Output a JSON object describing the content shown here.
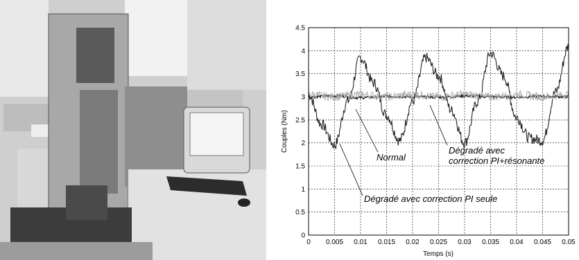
{
  "photo": {
    "subject": "lab-test-bench-photo"
  },
  "chart_data": {
    "type": "line",
    "title": "",
    "xlabel": "Temps (s)",
    "ylabel": "Couples (Nm)",
    "xlim": [
      0,
      0.05
    ],
    "ylim": [
      0,
      4.5
    ],
    "x_ticks": [
      0,
      0.005,
      0.01,
      0.015,
      0.02,
      0.025,
      0.03,
      0.035,
      0.04,
      0.045,
      0.05
    ],
    "x_tick_labels": [
      "0",
      "0.005",
      "0.01",
      "0.015",
      "0.02",
      "0.025",
      "0.03",
      "0.035",
      "0.04",
      "0.045",
      "0.05"
    ],
    "y_ticks": [
      0,
      0.5,
      1,
      1.5,
      2,
      2.5,
      3,
      3.5,
      4,
      4.5
    ],
    "y_tick_labels": [
      "0",
      "0.5",
      "1",
      "1.5",
      "2",
      "2.5",
      "3",
      "3.5",
      "4",
      "4.5"
    ],
    "grid": true,
    "series": [
      {
        "color": "#222222",
        "x": [
          0,
          0.0025,
          0.005,
          0.0075,
          0.01,
          0.0125,
          0.015,
          0.0175,
          0.02,
          0.0225,
          0.025,
          0.0275,
          0.03,
          0.0325,
          0.035,
          0.0375,
          0.04,
          0.0425,
          0.045,
          0.0475,
          0.05
        ],
        "values": [
          3.05,
          2.4,
          1.95,
          2.9,
          3.85,
          3.3,
          2.6,
          2.05,
          2.9,
          3.85,
          3.45,
          2.7,
          2.0,
          2.9,
          3.95,
          3.45,
          2.55,
          2.1,
          2.05,
          3.1,
          4.1
        ]
      },
      {
        "color": "#111111",
        "x": [
          0,
          0.005,
          0.01,
          0.015,
          0.02,
          0.025,
          0.03,
          0.035,
          0.04,
          0.045,
          0.05
        ],
        "values": [
          3.0,
          3.02,
          2.98,
          3.01,
          3.0,
          2.99,
          3.02,
          3.0,
          2.99,
          3.01,
          3.0
        ]
      },
      {
        "color": "#aaaaaa",
        "x": [
          0,
          0.005,
          0.01,
          0.015,
          0.02,
          0.025,
          0.03,
          0.035,
          0.04,
          0.045,
          0.05
        ],
        "values": [
          3.05,
          3.0,
          3.05,
          3.0,
          3.05,
          3.0,
          3.05,
          3.0,
          3.05,
          3.0,
          3.05
        ]
      }
    ],
    "annotations": [
      {
        "text": "Normal",
        "at": [
          0.0095,
          2.95
        ]
      },
      {
        "text": "Dégradé avec\ncorrection PI+résonante",
        "at": [
          0.023,
          2.65
        ]
      },
      {
        "text": "Dégradé avec correction PI seule",
        "at": [
          0.006,
          1.85
        ]
      }
    ]
  }
}
